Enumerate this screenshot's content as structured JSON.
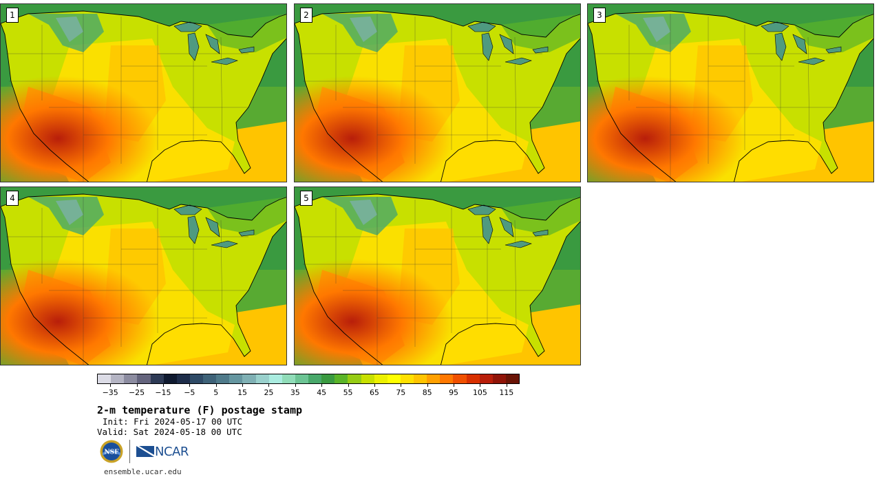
{
  "panels": [
    {
      "label": "1"
    },
    {
      "label": "2"
    },
    {
      "label": "3"
    },
    {
      "label": "4"
    },
    {
      "label": "5"
    }
  ],
  "colorbar": {
    "colors": [
      "#dcdce6",
      "#b4b4c3",
      "#8c8ca0",
      "#64647d",
      "#2d3a55",
      "#0f1a30",
      "#1e2d4a",
      "#2e4a66",
      "#3e6278",
      "#4f7a8a",
      "#6596a0",
      "#7fb0b4",
      "#99d0cc",
      "#aaece0",
      "#90dcb8",
      "#6cc494",
      "#48a86a",
      "#3a9a40",
      "#5ab428",
      "#96cc14",
      "#c8e000",
      "#ecf000",
      "#ffff00",
      "#ffe000",
      "#ffc400",
      "#ffa000",
      "#ff7800",
      "#f05000",
      "#d83000",
      "#b81e0a",
      "#901408",
      "#6a1406"
    ],
    "tick_labels": [
      "−35",
      "−25",
      "−15",
      "−5",
      "5",
      "15",
      "25",
      "35",
      "45",
      "55",
      "65",
      "75",
      "85",
      "95",
      "105",
      "115"
    ],
    "range": [
      -40,
      120
    ]
  },
  "title": "2-m temperature (F) postage stamp",
  "init": "Init: Fri 2024-05-17 00 UTC",
  "valid": "Valid: Sat 2024-05-18 00 UTC",
  "logos": {
    "nsf": "NSF",
    "ncar": "NCAR"
  },
  "website": "ensemble.ucar.edu",
  "icons": [
    "nsf-logo-icon",
    "ncar-logo-icon"
  ]
}
